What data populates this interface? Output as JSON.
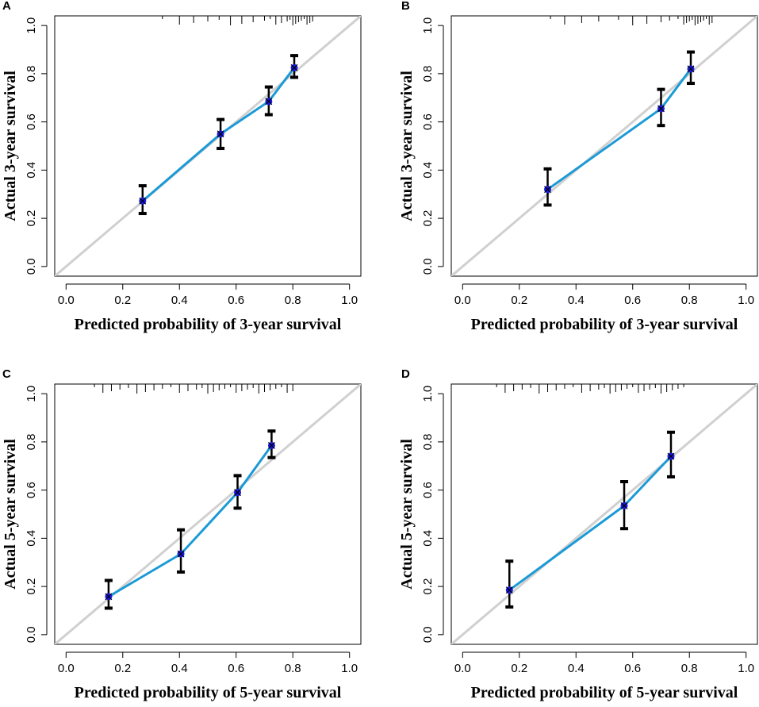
{
  "chart_data": [
    {
      "panel_label": "A",
      "type": "line",
      "xlabel": "Predicted probability of 3-year survival",
      "ylabel": "Actual 3-year survival",
      "xlim": [
        0,
        1
      ],
      "ylim": [
        0,
        1
      ],
      "xticks": [
        "0.0",
        "0.2",
        "0.4",
        "0.6",
        "0.8",
        "1.0"
      ],
      "yticks": [
        "0.0",
        "0.2",
        "0.4",
        "0.6",
        "0.8",
        "1.0"
      ],
      "reference_line": "ideal (y = x)",
      "series": [
        {
          "name": "calibration",
          "x": [
            0.27,
            0.545,
            0.715,
            0.805
          ],
          "y": [
            0.272,
            0.55,
            0.685,
            0.825
          ],
          "lower": [
            0.22,
            0.49,
            0.63,
            0.785
          ],
          "upper": [
            0.335,
            0.61,
            0.745,
            0.875
          ]
        }
      ],
      "rug": [
        0.34,
        0.4,
        0.45,
        0.5,
        0.54,
        0.58,
        0.62,
        0.66,
        0.7,
        0.72,
        0.74,
        0.76,
        0.78,
        0.79,
        0.8,
        0.81,
        0.82,
        0.83,
        0.84,
        0.85,
        0.86,
        0.87
      ]
    },
    {
      "panel_label": "B",
      "type": "line",
      "xlabel": "Predicted probability of 3-year survival",
      "ylabel": "Actual 3-year survival",
      "xlim": [
        0,
        1
      ],
      "ylim": [
        0,
        1
      ],
      "xticks": [
        "0.0",
        "0.2",
        "0.4",
        "0.6",
        "0.8",
        "1.0"
      ],
      "yticks": [
        "0.0",
        "0.2",
        "0.4",
        "0.6",
        "0.8",
        "1.0"
      ],
      "reference_line": "ideal (y = x)",
      "series": [
        {
          "name": "calibration",
          "x": [
            0.3,
            0.7,
            0.805
          ],
          "y": [
            0.32,
            0.655,
            0.82
          ],
          "lower": [
            0.255,
            0.585,
            0.76
          ],
          "upper": [
            0.405,
            0.735,
            0.89
          ]
        }
      ],
      "rug": [
        0.31,
        0.36,
        0.42,
        0.48,
        0.55,
        0.6,
        0.65,
        0.7,
        0.73,
        0.76,
        0.78,
        0.79,
        0.8,
        0.81,
        0.82,
        0.83,
        0.84,
        0.85,
        0.86,
        0.87,
        0.88
      ]
    },
    {
      "panel_label": "C",
      "type": "line",
      "xlabel": "Predicted probability of 5-year survival",
      "ylabel": "Actual 5-year survival",
      "xlim": [
        0,
        1
      ],
      "ylim": [
        0,
        1
      ],
      "xticks": [
        "0.0",
        "0.2",
        "0.4",
        "0.6",
        "0.8",
        "1.0"
      ],
      "yticks": [
        "0.0",
        "0.2",
        "0.4",
        "0.6",
        "0.8",
        "1.0"
      ],
      "reference_line": "ideal (y = x)",
      "series": [
        {
          "name": "calibration",
          "x": [
            0.15,
            0.405,
            0.605,
            0.725
          ],
          "y": [
            0.158,
            0.335,
            0.59,
            0.785
          ],
          "lower": [
            0.11,
            0.26,
            0.525,
            0.735
          ],
          "upper": [
            0.225,
            0.435,
            0.66,
            0.845
          ]
        }
      ],
      "rug": [
        0.1,
        0.13,
        0.16,
        0.19,
        0.22,
        0.25,
        0.28,
        0.31,
        0.34,
        0.37,
        0.4,
        0.43,
        0.46,
        0.48,
        0.5,
        0.52,
        0.54,
        0.56,
        0.58,
        0.6,
        0.62,
        0.64,
        0.66,
        0.68,
        0.7,
        0.72,
        0.74,
        0.76,
        0.78,
        0.8
      ]
    },
    {
      "panel_label": "D",
      "type": "line",
      "xlabel": "Predicted probability of 5-year survival",
      "ylabel": "Actual 5-year survival",
      "xlim": [
        0,
        1
      ],
      "ylim": [
        0,
        1
      ],
      "xticks": [
        "0.0",
        "0.2",
        "0.4",
        "0.6",
        "0.8",
        "1.0"
      ],
      "yticks": [
        "0.0",
        "0.2",
        "0.4",
        "0.6",
        "0.8",
        "1.0"
      ],
      "reference_line": "ideal (y = x)",
      "series": [
        {
          "name": "calibration",
          "x": [
            0.165,
            0.57,
            0.735
          ],
          "y": [
            0.185,
            0.535,
            0.74
          ],
          "lower": [
            0.115,
            0.44,
            0.655
          ],
          "upper": [
            0.305,
            0.635,
            0.84
          ]
        }
      ],
      "rug": [
        0.12,
        0.15,
        0.18,
        0.21,
        0.24,
        0.27,
        0.3,
        0.33,
        0.36,
        0.39,
        0.42,
        0.45,
        0.48,
        0.5,
        0.52,
        0.54,
        0.56,
        0.58,
        0.6,
        0.62,
        0.64,
        0.66,
        0.68,
        0.7,
        0.72,
        0.74,
        0.76,
        0.78
      ]
    }
  ]
}
